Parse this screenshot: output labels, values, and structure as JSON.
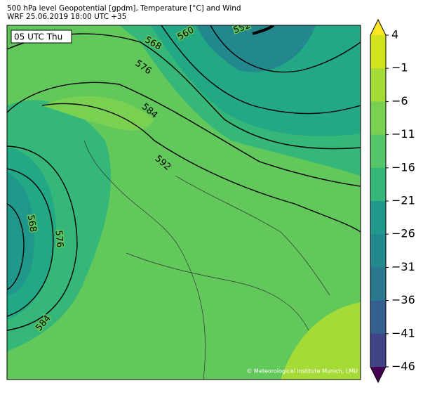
{
  "header": {
    "title": "500 hPa level Geopotential [gpdm], Temperature [°C] and Wind",
    "subtitle": "WRF 25.06.2019 18:00 UTC +35"
  },
  "map": {
    "time_label": "05 UTC Thu",
    "contour_labels": [
      560,
      552,
      568,
      576,
      584,
      592,
      568,
      576,
      584
    ],
    "credit": "© Meteorological Institute Munich, LMU"
  },
  "colorbar": {
    "ticks": [
      4,
      {
        "value": -1,
        "label": "−1"
      },
      {
        "value": -6,
        "label": "−6"
      },
      {
        "value": -11,
        "label": "−11"
      },
      {
        "value": -16,
        "label": "−16"
      },
      {
        "value": -21,
        "label": "−21"
      },
      {
        "value": -26,
        "label": "−26"
      },
      {
        "value": -31,
        "label": "−31"
      },
      {
        "value": -36,
        "label": "−36"
      },
      {
        "value": -41,
        "label": "−41"
      },
      {
        "value": -46,
        "label": "−46"
      }
    ],
    "colors": [
      "#fde725",
      "#d2e21b",
      "#a5db36",
      "#7ad151",
      "#54c568",
      "#35b779",
      "#22a884",
      "#1f988b",
      "#23888e",
      "#2a788e",
      "#355f8d",
      "#414487",
      "#482475",
      "#440154"
    ]
  }
}
